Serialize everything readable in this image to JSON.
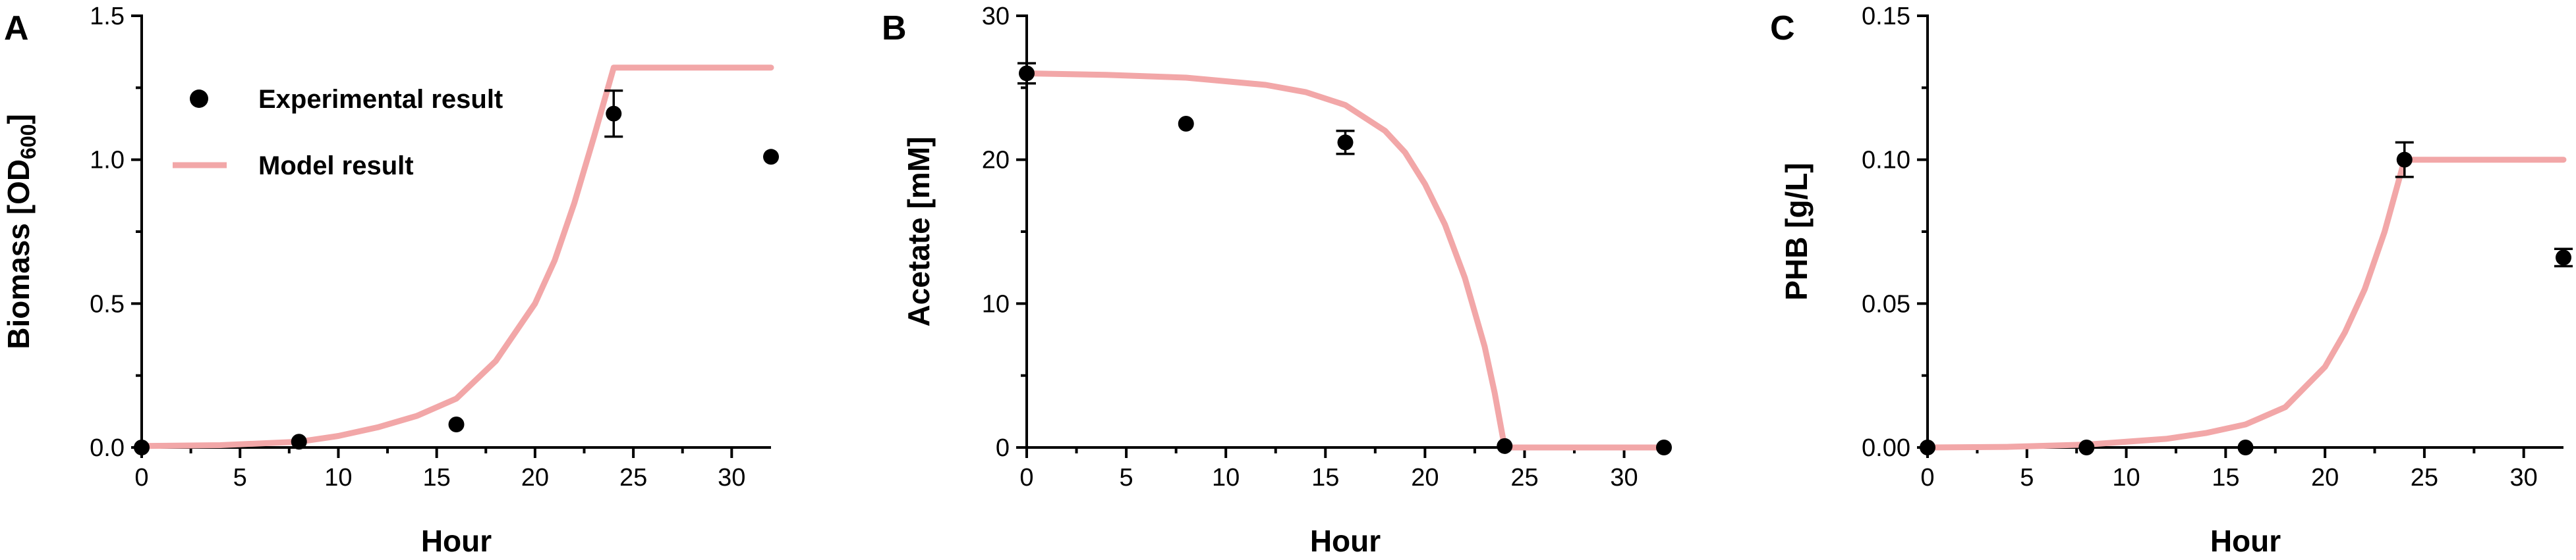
{
  "colors": {
    "model": "#f2a7a8",
    "experimental": "#000000"
  },
  "legend": {
    "experimental_label": "Experimental result",
    "model_label": "Model result"
  },
  "chart_data": [
    {
      "type": "scatter",
      "panel": "A",
      "xlabel": "Hour",
      "ylabel": "Biomass [OD",
      "ylabel_sub": "600",
      "ylabel_suffix": "]",
      "xlim": [
        0,
        32
      ],
      "ylim": [
        0,
        1.5
      ],
      "xticks": [
        0,
        5,
        10,
        15,
        20,
        25,
        30
      ],
      "yticks": [
        0,
        0.5,
        1.0,
        1.5
      ],
      "ytick_labels": [
        "0.0",
        "0.5",
        "1.0",
        "1.5"
      ],
      "legend_position": "top-left",
      "series": [
        {
          "name": "Experimental result",
          "kind": "points",
          "x": [
            0,
            8,
            16,
            24,
            32
          ],
          "y": [
            0.0,
            0.02,
            0.08,
            1.16,
            1.01
          ],
          "err": [
            0,
            0,
            0,
            0.08,
            0
          ]
        },
        {
          "name": "Model result",
          "kind": "line",
          "x": [
            0,
            4,
            8,
            10,
            12,
            14,
            16,
            18,
            20,
            21,
            22,
            23,
            24,
            25,
            28,
            32
          ],
          "y": [
            0.005,
            0.008,
            0.02,
            0.04,
            0.07,
            0.11,
            0.17,
            0.3,
            0.5,
            0.65,
            0.85,
            1.08,
            1.32,
            1.32,
            1.32,
            1.32
          ]
        }
      ]
    },
    {
      "type": "scatter",
      "panel": "B",
      "xlabel": "Hour",
      "ylabel": "Acetate [mM]",
      "xlim": [
        0,
        32
      ],
      "ylim": [
        0,
        30
      ],
      "xticks": [
        0,
        5,
        10,
        15,
        20,
        25,
        30
      ],
      "yticks": [
        0,
        10,
        20,
        30
      ],
      "ytick_labels": [
        "0",
        "10",
        "20",
        "30"
      ],
      "series": [
        {
          "name": "Experimental result",
          "kind": "points",
          "x": [
            0,
            8,
            16,
            24,
            32
          ],
          "y": [
            26.0,
            22.5,
            21.2,
            0.1,
            0.0
          ],
          "err": [
            0.7,
            0,
            0.8,
            0,
            0
          ]
        },
        {
          "name": "Model result",
          "kind": "line",
          "x": [
            0,
            4,
            8,
            12,
            14,
            16,
            18,
            19,
            20,
            21,
            22,
            23,
            23.5,
            24,
            25,
            28,
            32
          ],
          "y": [
            26.0,
            25.9,
            25.7,
            25.2,
            24.7,
            23.8,
            22.0,
            20.5,
            18.3,
            15.5,
            11.8,
            7.0,
            3.8,
            0.0,
            0.0,
            0.0,
            0.0
          ]
        }
      ]
    },
    {
      "type": "scatter",
      "panel": "C",
      "xlabel": "Hour",
      "ylabel": "PHB [g/L]",
      "xlim": [
        0,
        32
      ],
      "ylim": [
        0,
        0.15
      ],
      "xticks": [
        0,
        5,
        10,
        15,
        20,
        25,
        30
      ],
      "yticks": [
        0,
        0.05,
        0.1,
        0.15
      ],
      "ytick_labels": [
        "0.00",
        "0.05",
        "0.10",
        "0.15"
      ],
      "series": [
        {
          "name": "Experimental result",
          "kind": "points",
          "x": [
            0,
            8,
            16,
            24,
            32
          ],
          "y": [
            0.0,
            0.0,
            0.0,
            0.1,
            0.066
          ],
          "err": [
            0,
            0,
            0,
            0.006,
            0.003
          ]
        },
        {
          "name": "Model result",
          "kind": "line",
          "x": [
            0,
            4,
            8,
            10,
            12,
            14,
            16,
            18,
            20,
            21,
            22,
            23,
            24,
            25,
            28,
            32
          ],
          "y": [
            0.0,
            0.0002,
            0.001,
            0.002,
            0.003,
            0.005,
            0.008,
            0.014,
            0.028,
            0.04,
            0.055,
            0.075,
            0.1,
            0.1,
            0.1,
            0.1
          ]
        }
      ]
    }
  ]
}
